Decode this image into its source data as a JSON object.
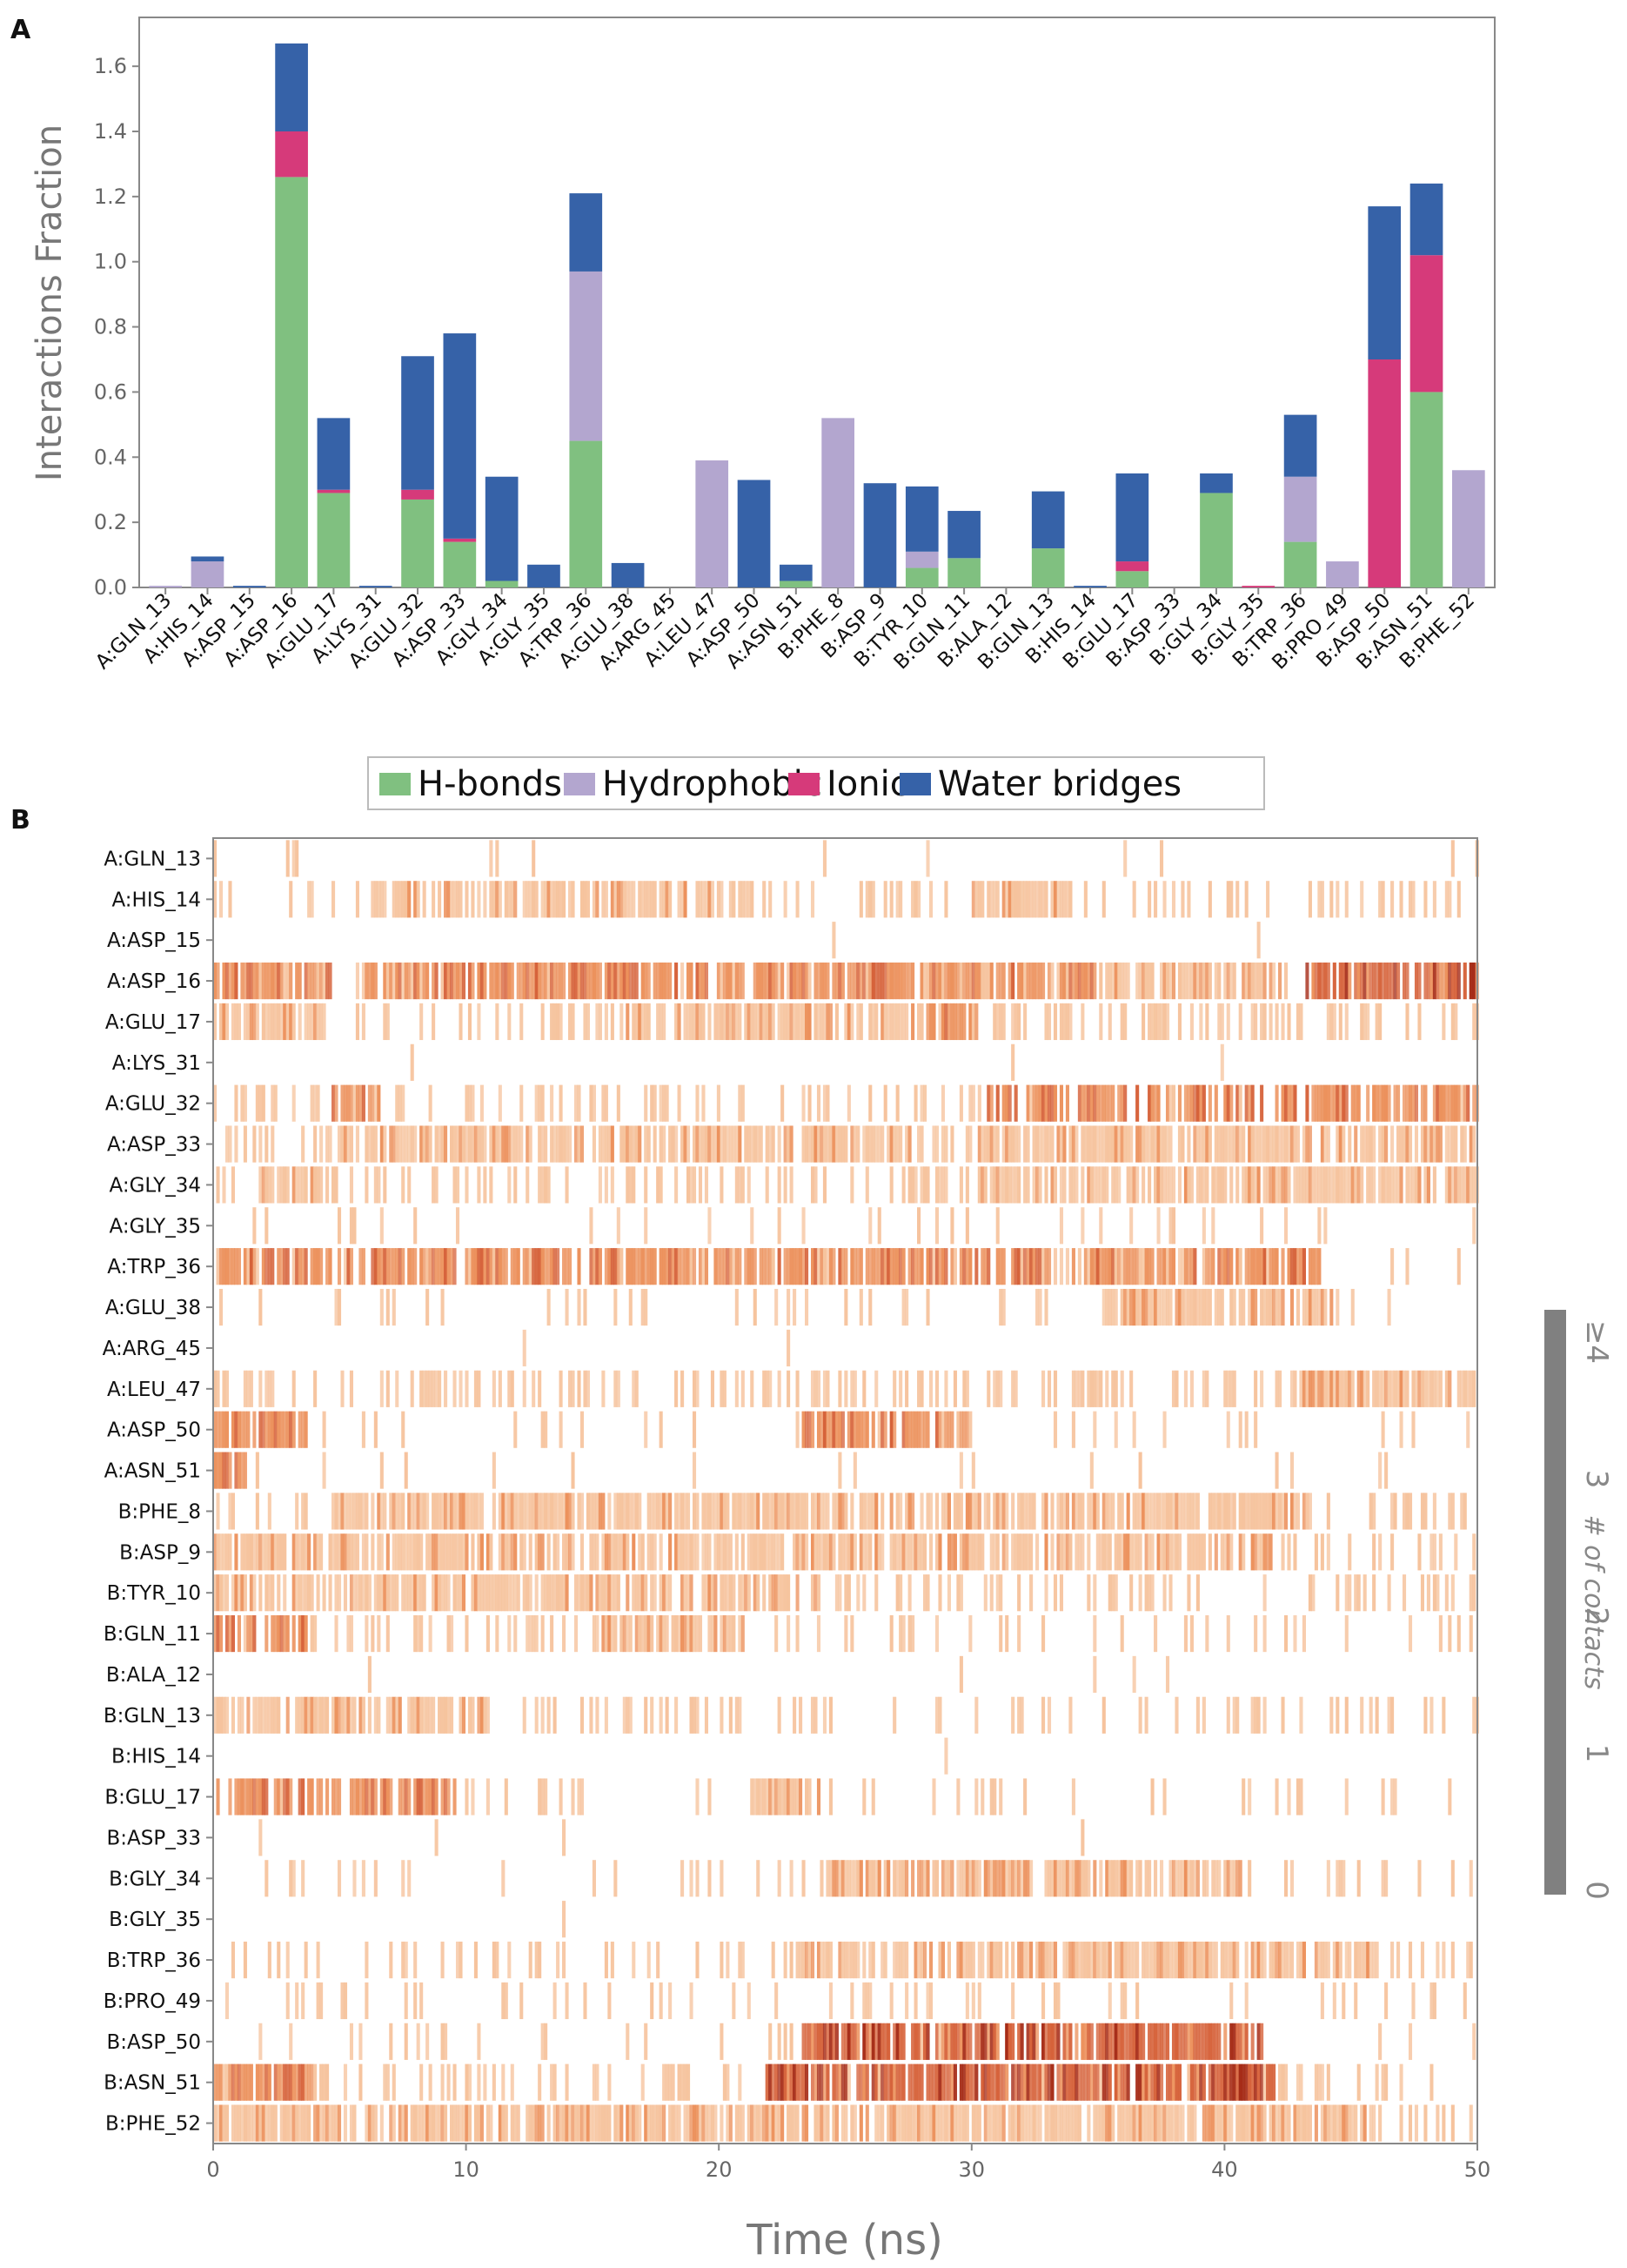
{
  "chart_data": [
    {
      "panel": "A",
      "type": "bar",
      "stacked": true,
      "ylabel": "Interactions Fraction",
      "xlabel": "",
      "ylim": [
        0,
        1.75
      ],
      "yticks": [
        0.0,
        0.2,
        0.4,
        0.6,
        0.8,
        1.0,
        1.2,
        1.4,
        1.6
      ],
      "grid": false,
      "categories": [
        "A:GLN_13",
        "A:HIS_14",
        "A:ASP_15",
        "A:ASP_16",
        "A:GLU_17",
        "A:LYS_31",
        "A:GLU_32",
        "A:ASP_33",
        "A:GLY_34",
        "A:GLY_35",
        "A:TRP_36",
        "A:GLU_38",
        "A:ARG_45",
        "A:LEU_47",
        "A:ASP_50",
        "A:ASN_51",
        "B:PHE_8",
        "B:ASP_9",
        "B:TYR_10",
        "B:GLN_11",
        "B:ALA_12",
        "B:GLN_13",
        "B:HIS_14",
        "B:GLU_17",
        "B:ASP_33",
        "B:GLY_34",
        "B:GLY_35",
        "B:TRP_36",
        "B:PRO_49",
        "B:ASP_50",
        "B:ASN_51",
        "B:PHE_52"
      ],
      "series": [
        {
          "name": "H-bonds",
          "color": "#80c080",
          "values": [
            0,
            0,
            0,
            1.26,
            0.29,
            0,
            0.27,
            0.14,
            0.02,
            0,
            0.45,
            0,
            0,
            0,
            0,
            0.02,
            0,
            0,
            0.06,
            0.09,
            0,
            0.12,
            0,
            0.05,
            0,
            0.29,
            0,
            0.14,
            0,
            0,
            0.6,
            0
          ]
        },
        {
          "name": "Hydrophobic",
          "color": "#b3a6cf",
          "values": [
            0.005,
            0.08,
            0,
            0,
            0,
            0,
            0,
            0,
            0,
            0,
            0.52,
            0,
            0,
            0.39,
            0,
            0,
            0.52,
            0,
            0.05,
            0,
            0,
            0,
            0,
            0,
            0,
            0,
            0,
            0.2,
            0.08,
            0,
            0,
            0.36
          ]
        },
        {
          "name": "Ionic",
          "color": "#d63a7a",
          "values": [
            0,
            0,
            0,
            0.14,
            0.01,
            0,
            0.03,
            0.01,
            0,
            0,
            0,
            0,
            0,
            0,
            0,
            0,
            0,
            0,
            0,
            0,
            0,
            0,
            0,
            0.03,
            0,
            0,
            0.005,
            0,
            0,
            0.7,
            0.42,
            0
          ]
        },
        {
          "name": "Water bridges",
          "color": "#3662a8",
          "values": [
            0,
            0.015,
            0.005,
            0.27,
            0.22,
            0.005,
            0.41,
            0.63,
            0.32,
            0.07,
            0.24,
            0.075,
            0,
            0,
            0.33,
            0.05,
            0,
            0.32,
            0.2,
            0.145,
            0,
            0.175,
            0.005,
            0.27,
            0,
            0.06,
            0,
            0.19,
            0,
            0.47,
            0.22,
            0
          ]
        }
      ],
      "legend": [
        "H-bonds",
        "Hydrophobic",
        "Ionic",
        "Water bridges"
      ],
      "legend_position": "bottom-center"
    },
    {
      "panel": "B",
      "type": "heatmap",
      "xlabel": "Time (ns)",
      "xlim": [
        0,
        50
      ],
      "xticks": [
        0,
        10,
        20,
        30,
        40,
        50
      ],
      "rows": [
        "A:GLN_13",
        "A:HIS_14",
        "A:ASP_15",
        "A:ASP_16",
        "A:GLU_17",
        "A:LYS_31",
        "A:GLU_32",
        "A:ASP_33",
        "A:GLY_34",
        "A:GLY_35",
        "A:TRP_36",
        "A:GLU_38",
        "A:ARG_45",
        "A:LEU_47",
        "A:ASP_50",
        "A:ASN_51",
        "B:PHE_8",
        "B:ASP_9",
        "B:TYR_10",
        "B:GLN_11",
        "B:ALA_12",
        "B:GLN_13",
        "B:HIS_14",
        "B:GLU_17",
        "B:ASP_33",
        "B:GLY_34",
        "B:GLY_35",
        "B:TRP_36",
        "B:PRO_49",
        "B:ASP_50",
        "B:ASN_51",
        "B:PHE_52"
      ],
      "segments": [
        {
          "row": "A:GLN_13",
          "ranges": [
            [
              2.8,
              3.3,
              1
            ]
          ],
          "density": 0.02
        },
        {
          "row": "A:HIS_14",
          "ranges": [
            [
              6.2,
              21,
              1
            ],
            [
              30,
              34,
              1
            ]
          ],
          "density": 0.25
        },
        {
          "row": "A:ASP_15",
          "ranges": [],
          "density": 0.005
        },
        {
          "row": "A:ASP_16",
          "ranges": [
            [
              0,
              4.6,
              2
            ],
            [
              5.6,
              31.5,
              2
            ],
            [
              31.5,
              34.9,
              2
            ],
            [
              34.9,
              42.2,
              1
            ],
            [
              43.1,
              50,
              2.5
            ]
          ],
          "density": 0.03
        },
        {
          "row": "A:GLU_17",
          "ranges": [
            [
              0,
              4.4,
              1
            ],
            [
              16,
              27.5,
              1
            ],
            [
              27.5,
              30.2,
              2
            ]
          ],
          "density": 0.3
        },
        {
          "row": "A:LYS_31",
          "ranges": [],
          "density": 0.01
        },
        {
          "row": "A:GLU_32",
          "ranges": [
            [
              4.6,
              6.6,
              2
            ],
            [
              30.5,
              50,
              1.6
            ]
          ],
          "density": 0.3
        },
        {
          "row": "A:ASP_33",
          "ranges": [
            [
              5,
              27.5,
              1
            ],
            [
              30.2,
              50,
              1.2
            ]
          ],
          "density": 0.35
        },
        {
          "row": "A:GLY_34",
          "ranges": [
            [
              1.7,
              4.4,
              1
            ],
            [
              30.2,
              50,
              1
            ]
          ],
          "density": 0.3
        },
        {
          "row": "A:GLY_35",
          "ranges": [],
          "density": 0.08
        },
        {
          "row": "A:TRP_36",
          "ranges": [
            [
              0,
              43.8,
              2
            ]
          ],
          "density": 0.06
        },
        {
          "row": "A:GLU_38",
          "ranges": [
            [
              35,
              44.5,
              1
            ]
          ],
          "density": 0.1
        },
        {
          "row": "A:ARG_45",
          "ranges": [],
          "density": 0.005
        },
        {
          "row": "A:LEU_47",
          "ranges": [
            [
              42.7,
              50,
              1
            ]
          ],
          "density": 0.3
        },
        {
          "row": "A:ASP_50",
          "ranges": [
            [
              0,
              3.7,
              1.5
            ],
            [
              23,
              29.9,
              2
            ]
          ],
          "density": 0.08
        },
        {
          "row": "A:ASN_51",
          "ranges": [
            [
              0,
              1.3,
              1.5
            ]
          ],
          "density": 0.04
        },
        {
          "row": "B:PHE_8",
          "ranges": [
            [
              4.6,
              43.5,
              1
            ]
          ],
          "density": 0.3
        },
        {
          "row": "B:ASP_9",
          "ranges": [
            [
              0,
              42.5,
              1
            ]
          ],
          "density": 0.25
        },
        {
          "row": "B:TYR_10",
          "ranges": [
            [
              0,
              24,
              1
            ]
          ],
          "density": 0.3
        },
        {
          "row": "B:GLN_11",
          "ranges": [
            [
              0,
              3.7,
              1.8
            ],
            [
              15,
              21,
              1
            ]
          ],
          "density": 0.2
        },
        {
          "row": "B:ALA_12",
          "ranges": [],
          "density": 0.01
        },
        {
          "row": "B:GLN_13",
          "ranges": [
            [
              0,
              11,
              1.2
            ]
          ],
          "density": 0.2
        },
        {
          "row": "B:HIS_14",
          "ranges": [],
          "density": 0.01
        },
        {
          "row": "B:GLU_17",
          "ranges": [
            [
              0,
              9.5,
              1.5
            ],
            [
              21,
              24,
              1
            ]
          ],
          "density": 0.12
        },
        {
          "row": "B:ASP_33",
          "ranges": [],
          "density": 0.01
        },
        {
          "row": "B:GLY_34",
          "ranges": [
            [
              24.2,
              41,
              1
            ]
          ],
          "density": 0.1
        },
        {
          "row": "B:GLY_35",
          "ranges": [],
          "density": 0.02
        },
        {
          "row": "B:TRP_36",
          "ranges": [
            [
              22.8,
              46,
              1
            ]
          ],
          "density": 0.25
        },
        {
          "row": "B:PRO_49",
          "ranges": [],
          "density": 0.15
        },
        {
          "row": "B:ASP_50",
          "ranges": [
            [
              23.2,
              41.6,
              3
            ]
          ],
          "density": 0.1
        },
        {
          "row": "B:ASN_51",
          "ranges": [
            [
              0,
              4,
              2
            ],
            [
              21.8,
              42,
              3
            ]
          ],
          "density": 0.25
        },
        {
          "row": "B:PHE_52",
          "ranges": [
            [
              0,
              46,
              1
            ]
          ],
          "density": 0.35
        }
      ],
      "colorbar": {
        "title": "# of contacts",
        "ticks": [
          "0",
          "1",
          "2",
          "3",
          "≥4"
        ],
        "range": [
          0,
          4
        ]
      }
    }
  ],
  "labels": {
    "panel_a": "A",
    "panel_b": "B"
  }
}
